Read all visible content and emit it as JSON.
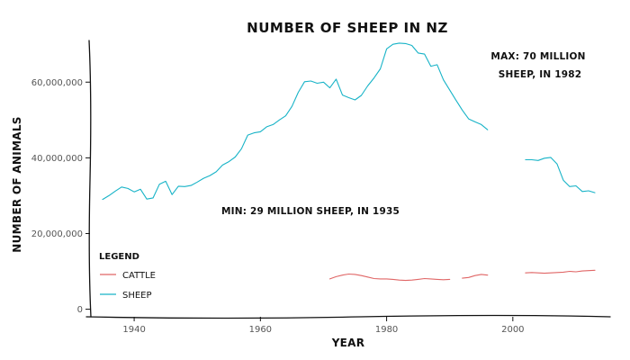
{
  "chart_data": {
    "type": "line",
    "title": "NUMBER OF SHEEP IN NZ",
    "xlabel": "YEAR",
    "ylabel": "NUMBER OF ANIMALS",
    "xlim": [
      1933,
      2014
    ],
    "ylim": [
      -2000000,
      71000000
    ],
    "x_ticks": [
      1940,
      1960,
      1980,
      2000
    ],
    "y_ticks": [
      0,
      20000000,
      40000000,
      60000000
    ],
    "y_tick_labels": [
      "0",
      "20,000,000",
      "40,000,000",
      "60,000,000"
    ],
    "grid": false,
    "legend_position": "bottom-left",
    "legend_title": "LEGEND",
    "annotations": [
      {
        "text_line1": "MAX: 70 MILLION",
        "text_line2": "SHEEP, IN 1982"
      },
      {
        "text": "MIN: 29 MILLION SHEEP, IN 1935"
      }
    ],
    "series": [
      {
        "name": "CATTLE",
        "color": "#e06666",
        "segments": [
          {
            "x": [
              1971,
              1972,
              1973,
              1974,
              1975,
              1976,
              1977,
              1978,
              1979,
              1980,
              1981,
              1982,
              1983,
              1984,
              1985,
              1986,
              1987,
              1988,
              1989,
              1990
            ],
            "y": [
              8000000,
              8600000,
              9000000,
              9300000,
              9200000,
              8900000,
              8500000,
              8100000,
              8000000,
              8000000,
              7900000,
              7700000,
              7600000,
              7700000,
              7900000,
              8100000,
              8000000,
              7900000,
              7800000,
              7900000
            ]
          },
          {
            "x": [
              1992,
              1993,
              1994,
              1995,
              1996
            ],
            "y": [
              8200000,
              8400000,
              8900000,
              9200000,
              9000000
            ]
          },
          {
            "x": [
              2002,
              2003,
              2004,
              2005,
              2006,
              2007,
              2008,
              2009,
              2010,
              2011,
              2012,
              2013
            ],
            "y": [
              9600000,
              9700000,
              9600000,
              9500000,
              9600000,
              9700000,
              9800000,
              10000000,
              9900000,
              10100000,
              10200000,
              10300000
            ]
          }
        ]
      },
      {
        "name": "SHEEP",
        "color": "#17b3c7",
        "segments": [
          {
            "x": [
              1935,
              1936,
              1937,
              1938,
              1939,
              1940,
              1941,
              1942,
              1943,
              1944,
              1945,
              1946,
              1947,
              1948,
              1949,
              1950,
              1951,
              1952,
              1953,
              1954,
              1955,
              1956,
              1957,
              1958,
              1959,
              1960,
              1961,
              1962,
              1963,
              1964,
              1965,
              1966,
              1967,
              1968,
              1969,
              1970,
              1971,
              1972,
              1973,
              1974,
              1975,
              1976,
              1977,
              1978,
              1979,
              1980,
              1981,
              1982,
              1983,
              1984,
              1985,
              1986,
              1987,
              1988,
              1989,
              1990,
              1991,
              1992,
              1993,
              1994,
              1995,
              1996
            ],
            "y": [
              29000000,
              30000000,
              31200000,
              32300000,
              31900000,
              31000000,
              31700000,
              29100000,
              29400000,
              33000000,
              33800000,
              30300000,
              32500000,
              32400000,
              32700000,
              33600000,
              34600000,
              35300000,
              36300000,
              38100000,
              39000000,
              40200000,
              42400000,
              46000000,
              46600000,
              46900000,
              48200000,
              48800000,
              50000000,
              51100000,
              53600000,
              57300000,
              60100000,
              60300000,
              59700000,
              60000000,
              58500000,
              60800000,
              56600000,
              55900000,
              55300000,
              56500000,
              59000000,
              61100000,
              63500000,
              68800000,
              70000000,
              70300000,
              70200000,
              69700000,
              67700000,
              67400000,
              64200000,
              64600000,
              60600000,
              57900000,
              55200000,
              52600000,
              50300000,
              49500000,
              48800000,
              47400000
            ]
          },
          {
            "x": [
              2002,
              2003,
              2004,
              2005,
              2006,
              2007,
              2008,
              2009,
              2010,
              2011,
              2012,
              2013
            ],
            "y": [
              39500000,
              39500000,
              39300000,
              39900000,
              40100000,
              38400000,
              34100000,
              32400000,
              32600000,
              31100000,
              31300000,
              30800000
            ]
          }
        ]
      }
    ]
  }
}
